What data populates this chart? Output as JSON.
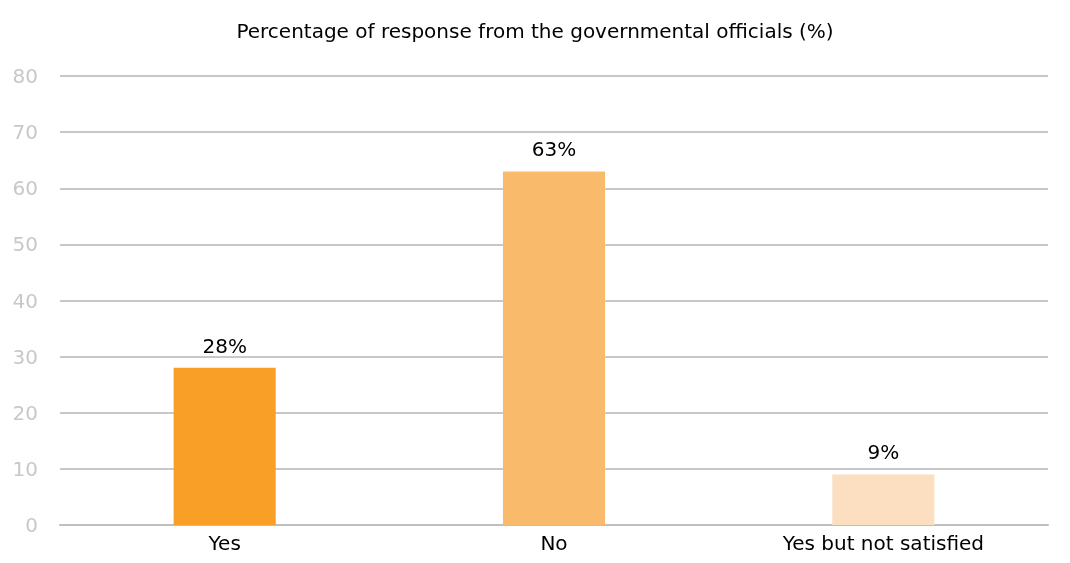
{
  "chart_data": {
    "type": "bar",
    "title": "Percentage of response from the governmental officials (%)",
    "categories": [
      "Yes",
      "No",
      "Yes but not satisfied"
    ],
    "values": [
      28,
      63,
      9
    ],
    "colors": [
      "#f99f27",
      "#f9bb6b",
      "#fbdfc0"
    ],
    "value_labels": [
      "28%",
      "63%",
      "9%"
    ],
    "ylim": [
      0,
      80
    ],
    "yticks": [
      0,
      10,
      20,
      30,
      40,
      50,
      60,
      70,
      80
    ],
    "grid": "y"
  }
}
